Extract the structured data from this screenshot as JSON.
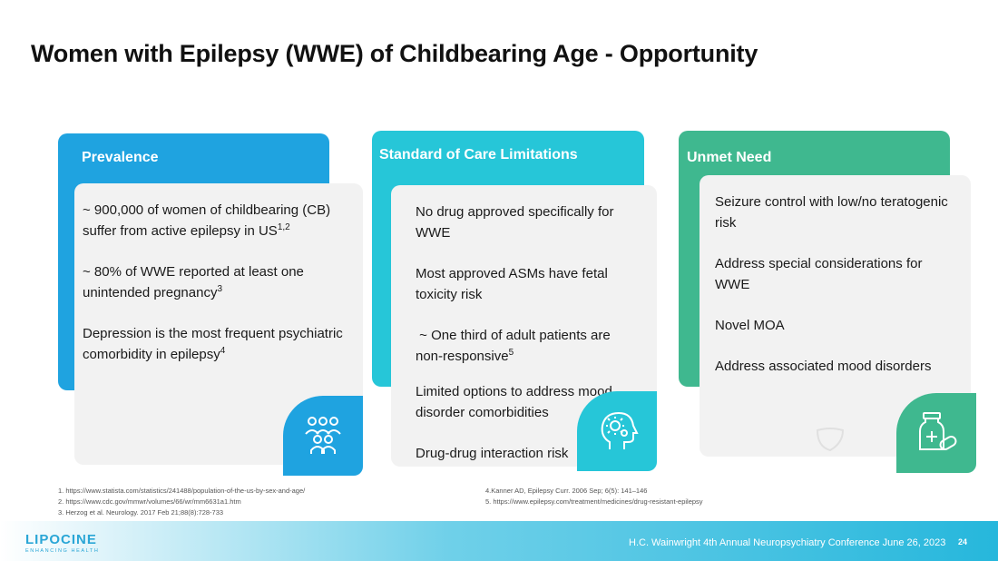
{
  "title": "Women with Epilepsy (WWE) of Childbearing Age - Opportunity",
  "cards": {
    "prevalence": {
      "label": "Prevalence",
      "color": "#1fa3e0",
      "items": [
        {
          "text": "~ 900,000 of women of childbearing (CB) suffer from active epilepsy in US",
          "sup": "1,2"
        },
        {
          "text": "~ 80% of WWE reported at least one unintended pregnancy",
          "sup": "3"
        },
        {
          "text": "Depression is the most frequent psychiatric comorbidity in epilepsy",
          "sup": "4"
        }
      ],
      "icon": "people-group-icon"
    },
    "standard": {
      "label": "Standard of Care Limitations",
      "color": "#26c6d8",
      "items": [
        {
          "text": "No drug approved specifically for WWE"
        },
        {
          "text": "Most approved ASMs have fetal toxicity risk"
        },
        {
          "text": " ~ One third of adult patients are non-responsive",
          "sup": "5"
        },
        {
          "text": "Limited options to address mood disorder comorbidities"
        },
        {
          "text": "Drug-drug interaction risk"
        }
      ],
      "icon": "head-gears-icon"
    },
    "unmet": {
      "label": "Unmet Need",
      "color": "#3fb88f",
      "items": [
        {
          "text": "Seizure control with low/no teratogenic risk"
        },
        {
          "text": "Address special considerations for WWE"
        },
        {
          "text": "Novel MOA"
        },
        {
          "text": "Address associated mood disorders"
        }
      ],
      "icon": "medicine-bottle-icon"
    }
  },
  "references_left": [
    "1. https://www.statista.com/statistics/241488/population-of-the-us-by-sex-and-age/",
    "2. https://www.cdc.gov/mmwr/volumes/66/wr/mm6631a1.htm",
    "3. Herzog et al. Neurology. 2017 Feb 21;88(8):728-733"
  ],
  "references_right": [
    "4.Kanner AD, Epilepsy Curr. 2006 Sep; 6(5): 141–146",
    "5. https://www.epilepsy.com/treatment/medicines/drug-resistant-epilepsy"
  ],
  "footer": {
    "logo": "LIPOCINE",
    "logo_tagline": "ENHANCING HEALTH",
    "conference": "H.C. Wainwright 4th Annual Neuropsychiatry Conference June 26, 2023",
    "page_number": "24"
  }
}
